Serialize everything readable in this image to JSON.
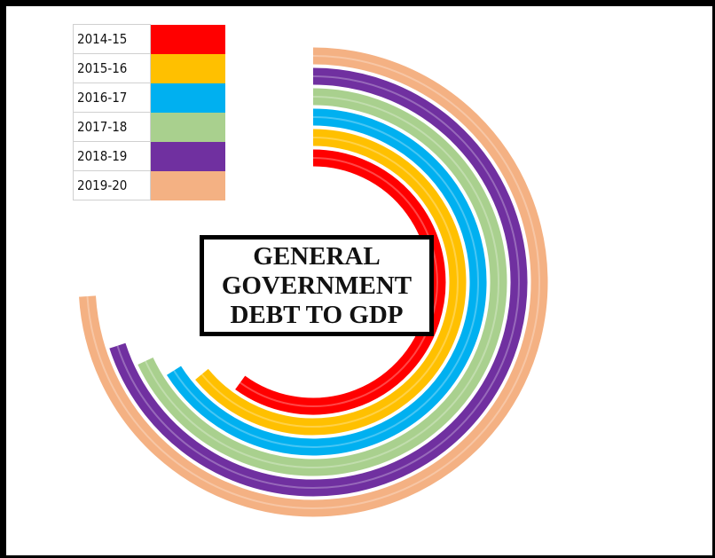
{
  "chart_data": {
    "type": "radial-bar",
    "title": "GENERAL\nGOVERNMENT\nDEBT TO GDP",
    "legend_position": "top-left",
    "series": [
      {
        "name": "2014-15",
        "color": "#ff0000",
        "sweep_fraction": 0.6
      },
      {
        "name": "2015-16",
        "color": "#ffc000",
        "sweep_fraction": 0.64
      },
      {
        "name": "2016-17",
        "color": "#00b0f0",
        "sweep_fraction": 0.66
      },
      {
        "name": "2017-18",
        "color": "#a9d08e",
        "sweep_fraction": 0.68
      },
      {
        "name": "2018-19",
        "color": "#7030a0",
        "sweep_fraction": 0.7
      },
      {
        "name": "2019-20",
        "color": "#f4b183",
        "sweep_fraction": 0.74
      }
    ]
  }
}
